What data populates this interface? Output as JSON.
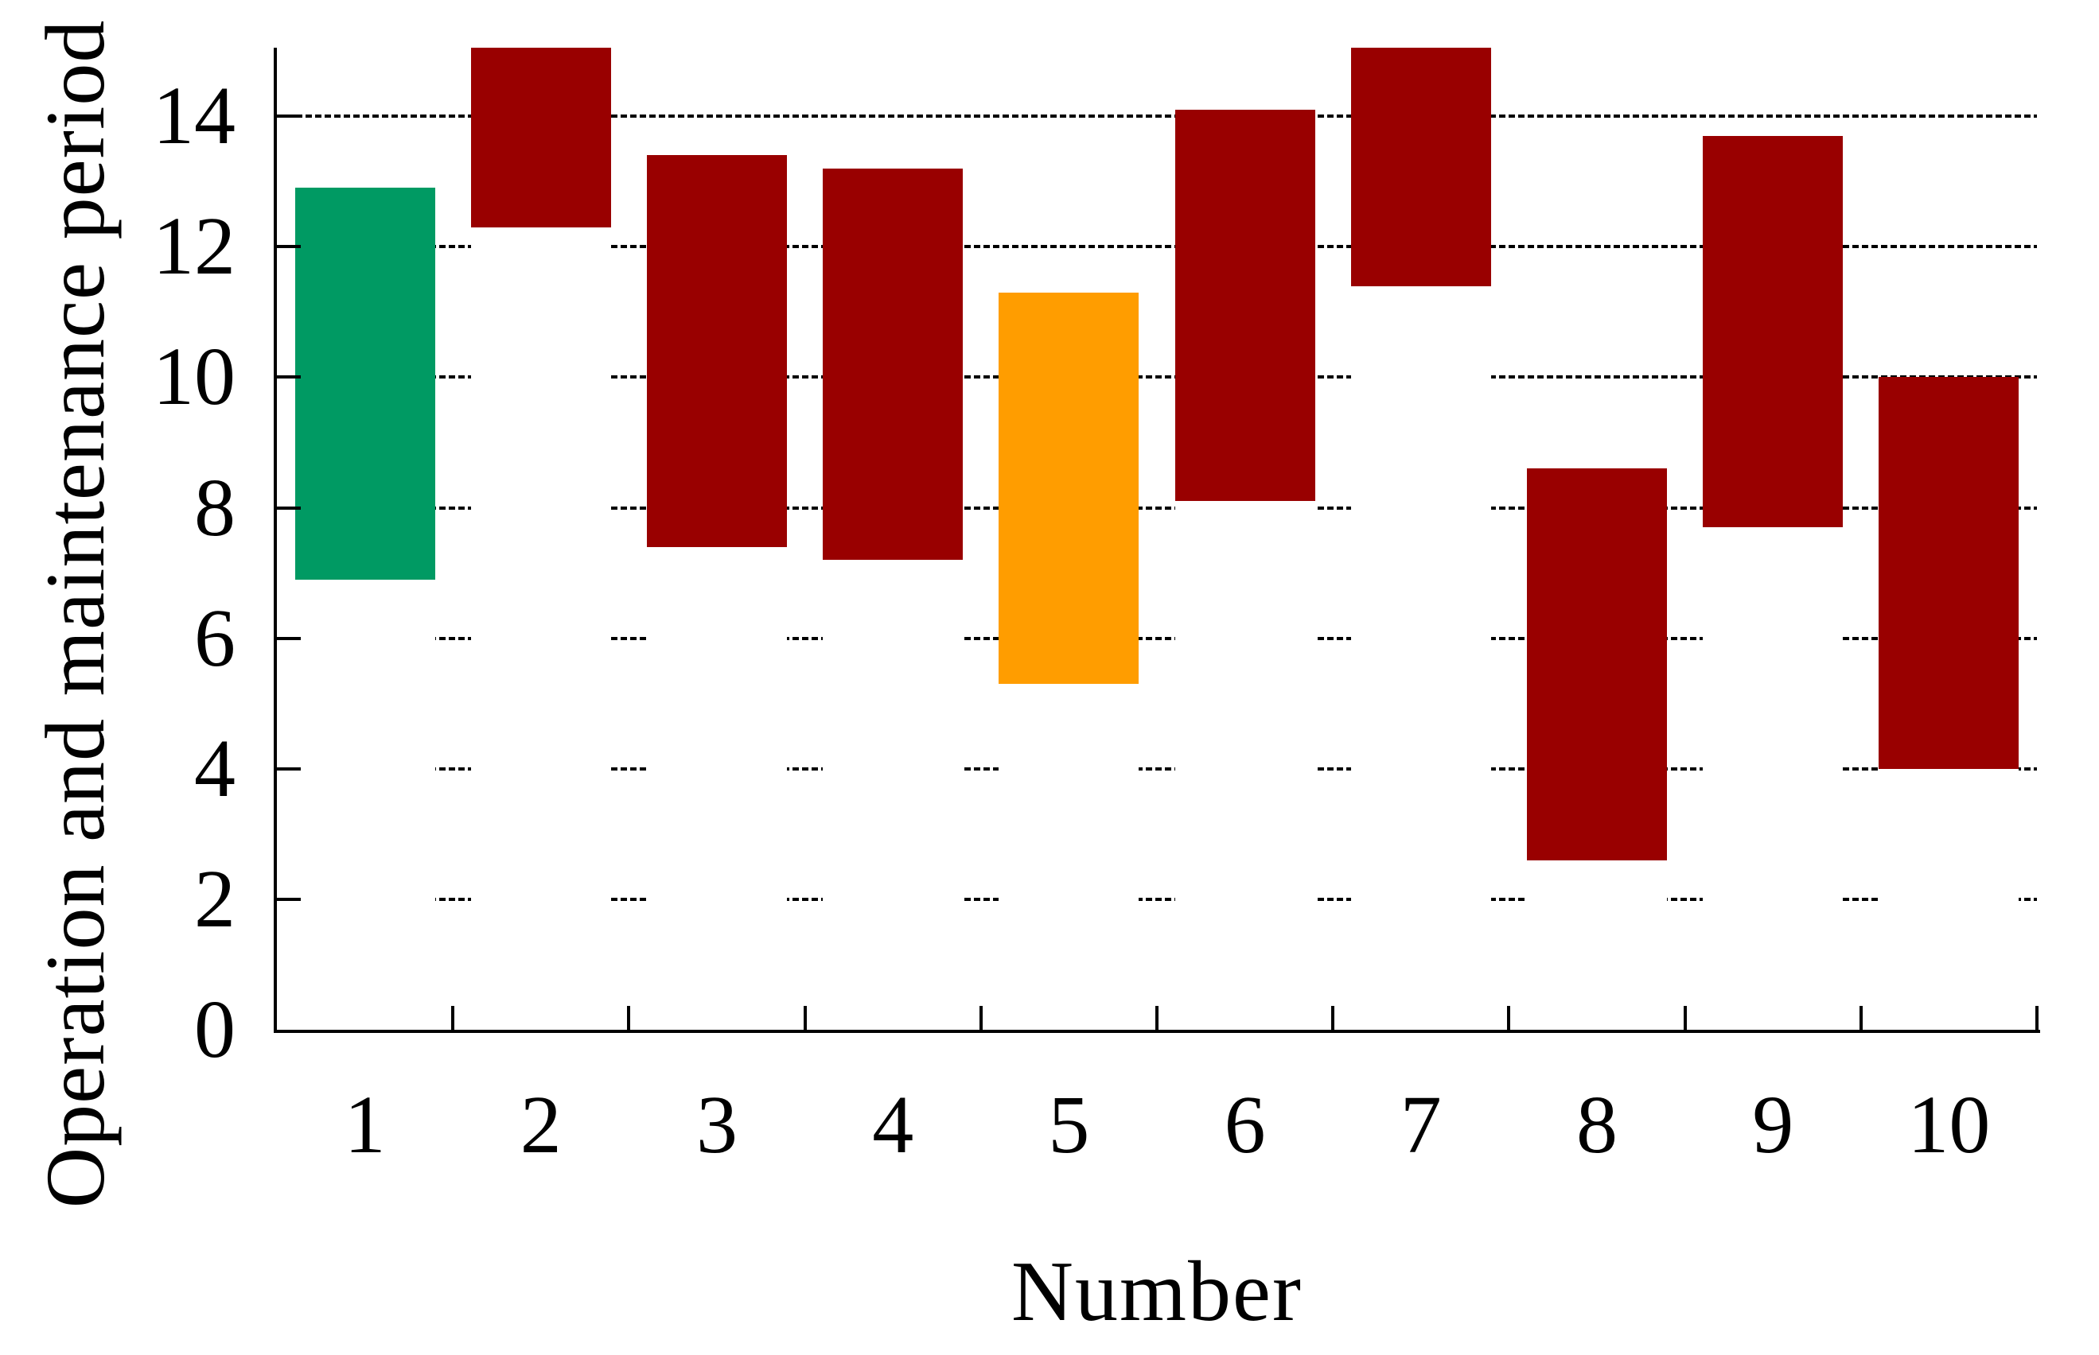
{
  "chart_data": {
    "type": "bar",
    "subtype": "floating-range-bars",
    "title": "",
    "xlabel": "Number",
    "ylabel": "Operation and maintenance period",
    "categories": [
      "1",
      "2",
      "3",
      "4",
      "5",
      "6",
      "7",
      "8",
      "9",
      "10"
    ],
    "bars": [
      {
        "number": "1",
        "start": 6.9,
        "end": 12.9,
        "color_key": "green",
        "clipped_at_top": false
      },
      {
        "number": "2",
        "start": 12.3,
        "end": 15.05,
        "color_key": "dark_red",
        "clipped_at_top": true
      },
      {
        "number": "3",
        "start": 7.4,
        "end": 13.4,
        "color_key": "dark_red",
        "clipped_at_top": false
      },
      {
        "number": "4",
        "start": 7.2,
        "end": 13.2,
        "color_key": "dark_red",
        "clipped_at_top": false
      },
      {
        "number": "5",
        "start": 5.3,
        "end": 11.3,
        "color_key": "orange",
        "clipped_at_top": false
      },
      {
        "number": "6",
        "start": 8.1,
        "end": 14.1,
        "color_key": "dark_red",
        "clipped_at_top": false
      },
      {
        "number": "7",
        "start": 11.4,
        "end": 15.05,
        "color_key": "dark_red",
        "clipped_at_top": true
      },
      {
        "number": "8",
        "start": 2.6,
        "end": 8.6,
        "color_key": "dark_red",
        "clipped_at_top": false
      },
      {
        "number": "9",
        "start": 7.7,
        "end": 13.7,
        "color_key": "dark_red",
        "clipped_at_top": false
      },
      {
        "number": "10",
        "start": 4.0,
        "end": 10.0,
        "color_key": "dark_red",
        "clipped_at_top": false
      }
    ],
    "ylim": [
      0,
      15.05
    ],
    "yticks": [
      0,
      2,
      4,
      6,
      8,
      10,
      12,
      14
    ],
    "ytick_labels": [
      "0",
      "2",
      "4",
      "6",
      "8",
      "10",
      "12",
      "14"
    ],
    "grid": "dashed-horizontal-at-yticks",
    "legend": "none",
    "colors": {
      "dark_red": "#990000",
      "green": "#009A63",
      "orange": "#FF9D00",
      "axis": "#000000",
      "background": "#FFFFFF"
    }
  }
}
